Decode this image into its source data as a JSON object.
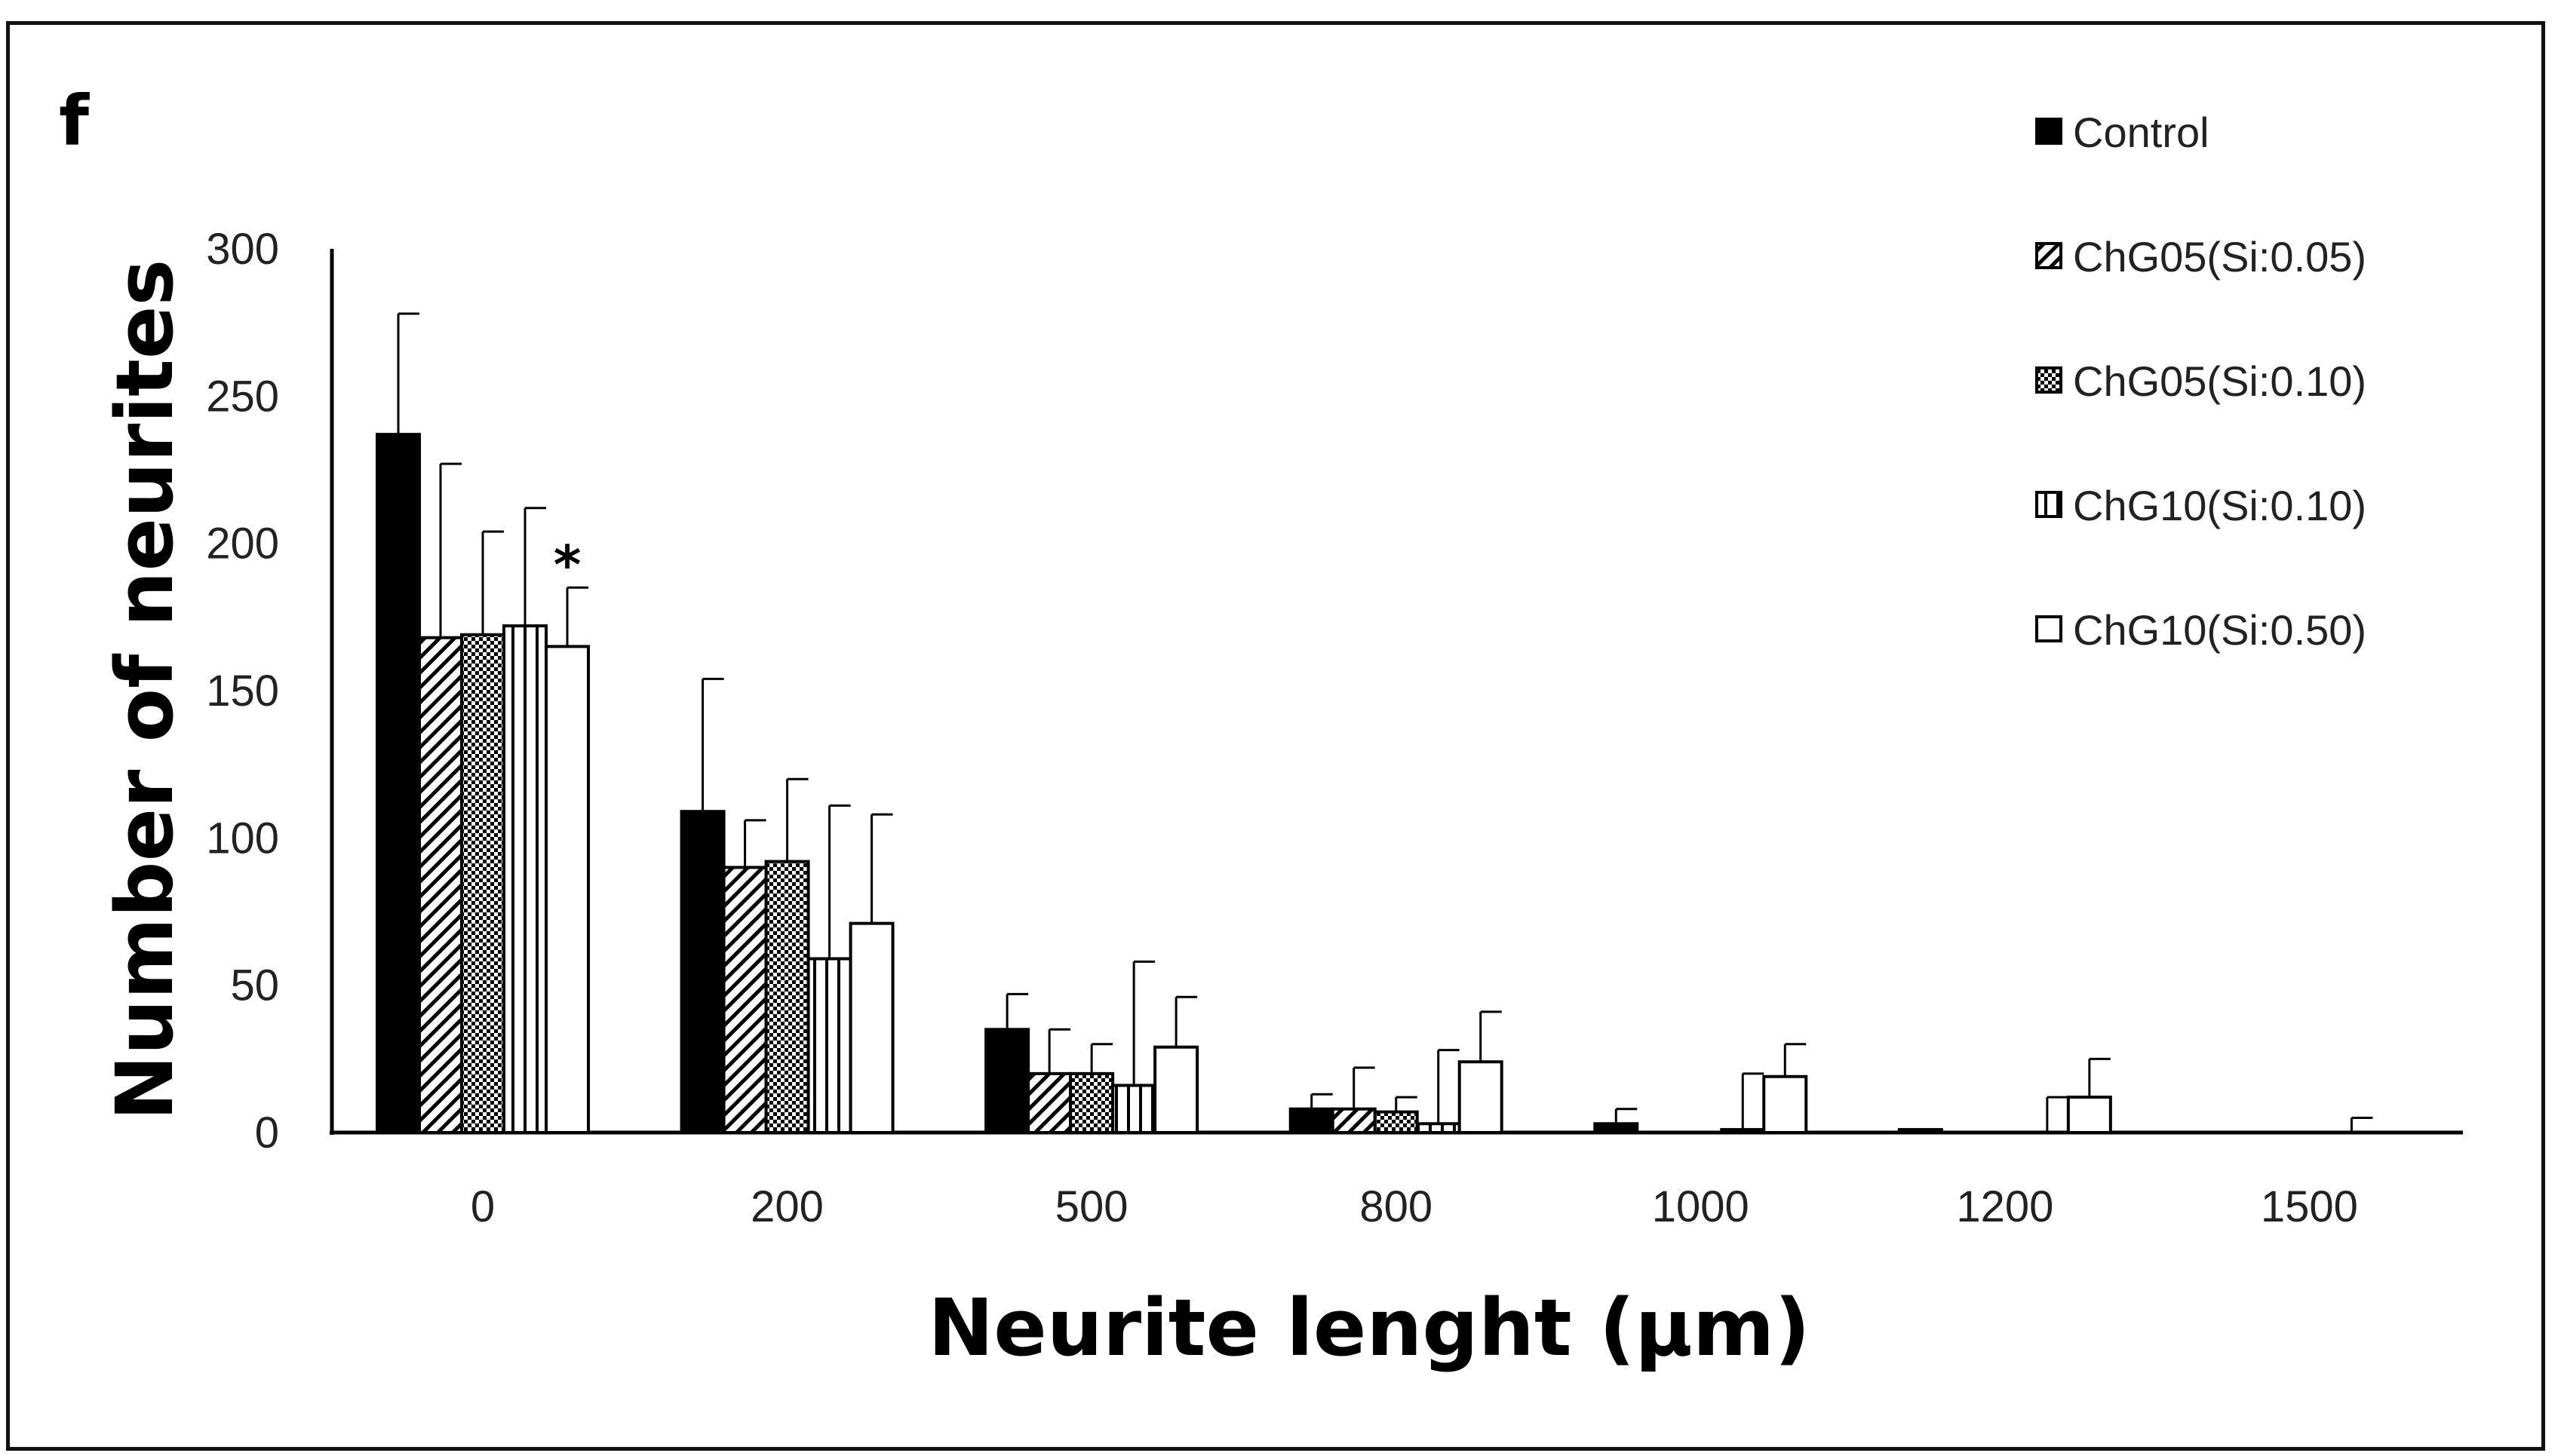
{
  "chart_data": {
    "type": "bar",
    "panel_label": "f",
    "title": "",
    "xlabel": "Neurite lenght (µm)",
    "ylabel": "Number of neurites",
    "categories": [
      "0",
      "200",
      "500",
      "800",
      "1000",
      "1200",
      "1500"
    ],
    "ylim": [
      0,
      300
    ],
    "yticks": [
      "0",
      "50",
      "100",
      "150",
      "200",
      "250",
      "300"
    ],
    "grid": false,
    "legend_position": "top-right",
    "series": [
      {
        "name": "Control",
        "pattern": "solid",
        "values": [
          237,
          109,
          35,
          8,
          3,
          1,
          0
        ],
        "errors": [
          41,
          45,
          12,
          5,
          5,
          0,
          0
        ]
      },
      {
        "name": "ChG05(Si:0.05)",
        "pattern": "diagonal",
        "values": [
          168,
          90,
          20,
          8,
          0,
          0,
          0
        ],
        "errors": [
          59,
          16,
          15,
          14,
          0,
          0,
          0
        ]
      },
      {
        "name": "ChG05(Si:0.10)",
        "pattern": "crosshatch",
        "values": [
          169,
          92,
          20,
          7,
          0,
          0,
          0
        ],
        "errors": [
          35,
          28,
          10,
          5,
          0,
          0,
          0
        ]
      },
      {
        "name": "ChG10(Si:0.10)",
        "pattern": "vertical",
        "values": [
          172,
          59,
          16,
          3,
          1,
          0,
          0
        ],
        "errors": [
          40,
          52,
          42,
          25,
          19,
          12,
          5
        ]
      },
      {
        "name": "ChG10(Si:0.50)",
        "pattern": "white",
        "values": [
          165,
          71,
          29,
          24,
          19,
          12,
          0
        ],
        "errors": [
          20,
          37,
          17,
          17,
          11,
          13,
          0
        ]
      }
    ],
    "annotations": [
      {
        "text": "*",
        "category": "0",
        "series": "ChG10(Si:0.50)"
      }
    ]
  },
  "colors": {
    "bar_fill": "#000000",
    "outline": "#000000",
    "background": "#ffffff"
  }
}
